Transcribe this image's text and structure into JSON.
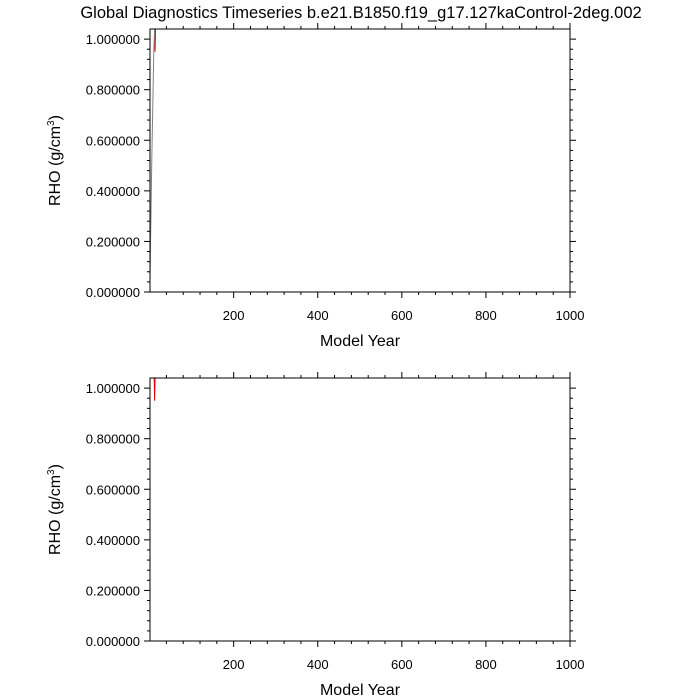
{
  "title": "Global Diagnostics Timeseries b.e21.B1850.f19_g17.127kaControl-2deg.002",
  "colors": {
    "background": "#ffffff",
    "axes": "#000000",
    "red_series": "#e00000",
    "gray_series": "#808080"
  },
  "chart_data": [
    {
      "type": "line",
      "xlabel": "Model Year",
      "ylabel": "RHO (g/cm",
      "ylabel_superscript": "3",
      "ylabel_suffix": ")",
      "xlim": [
        1,
        1000
      ],
      "ylim": [
        0,
        1.04
      ],
      "x_ticks": [
        200,
        400,
        600,
        800,
        1000
      ],
      "x_tick_labels": [
        "200",
        "400",
        "600",
        "800",
        "1000"
      ],
      "y_ticks": [
        0,
        0.2,
        0.4,
        0.6,
        0.8,
        1.0
      ],
      "y_tick_labels": [
        "0.000000",
        "0.200000",
        "0.400000",
        "0.600000",
        "0.800000",
        "1.000000"
      ],
      "grid": false,
      "series": [
        {
          "color": "#e00000",
          "x": [
            12,
            13,
            14,
            1000
          ],
          "y": [
            1.04,
            0.95,
            1.04,
            1.04
          ]
        },
        {
          "color": "#808080",
          "x": [
            1,
            5,
            10,
            12,
            1000
          ],
          "y": [
            0.05,
            0.5,
            0.95,
            1.04,
            1.04
          ]
        }
      ]
    },
    {
      "type": "line",
      "xlabel": "Model Year",
      "ylabel": "RHO (g/cm",
      "ylabel_superscript": "3",
      "ylabel_suffix": ")",
      "xlim": [
        1,
        1000
      ],
      "ylim": [
        0,
        1.04
      ],
      "x_ticks": [
        200,
        400,
        600,
        800,
        1000
      ],
      "x_tick_labels": [
        "200",
        "400",
        "600",
        "800",
        "1000"
      ],
      "y_ticks": [
        0,
        0.2,
        0.4,
        0.6,
        0.8,
        1.0
      ],
      "y_tick_labels": [
        "0.000000",
        "0.200000",
        "0.400000",
        "0.600000",
        "0.800000",
        "1.000000"
      ],
      "grid": false,
      "series": [
        {
          "color": "#e00000",
          "x": [
            11,
            12,
            13,
            1000
          ],
          "y": [
            1.04,
            0.95,
            1.04,
            1.04
          ]
        }
      ]
    }
  ]
}
